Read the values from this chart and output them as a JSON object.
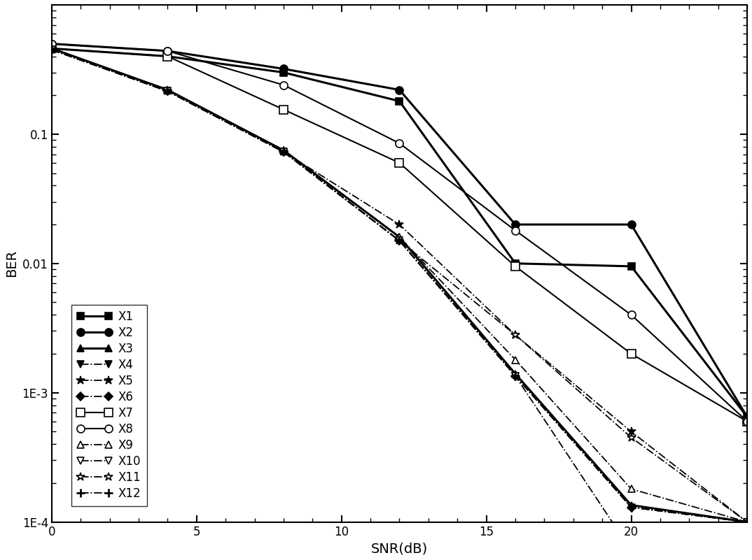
{
  "title": "",
  "xlabel": "SNR(dB)",
  "ylabel": "BER",
  "xlim": [
    0,
    24
  ],
  "ylim": [
    0.0001,
    1.0
  ],
  "xticks": [
    0,
    5,
    10,
    15,
    20
  ],
  "series": [
    {
      "label": "X1",
      "x": [
        0,
        4,
        8,
        12,
        16,
        20,
        24
      ],
      "y": [
        0.46,
        0.4,
        0.3,
        0.18,
        0.01,
        0.0095,
        0.00065
      ],
      "color": "black",
      "linestyle": "-",
      "linewidth": 2.2,
      "marker": "s",
      "markersize": 7,
      "markerfacecolor": "black",
      "markeredgecolor": "black"
    },
    {
      "label": "X2",
      "x": [
        0,
        4,
        8,
        12,
        16,
        20,
        24
      ],
      "y": [
        0.5,
        0.44,
        0.32,
        0.22,
        0.02,
        0.02,
        0.00065
      ],
      "color": "black",
      "linestyle": "-",
      "linewidth": 2.2,
      "marker": "o",
      "markersize": 8,
      "markerfacecolor": "black",
      "markeredgecolor": "black"
    },
    {
      "label": "X3",
      "x": [
        0,
        4,
        8,
        12,
        16,
        20,
        24
      ],
      "y": [
        0.46,
        0.22,
        0.075,
        0.016,
        0.0014,
        0.000135,
        0.0001
      ],
      "color": "black",
      "linestyle": "-",
      "linewidth": 2.2,
      "marker": "^",
      "markersize": 7,
      "markerfacecolor": "black",
      "markeredgecolor": "black"
    },
    {
      "label": "X4",
      "x": [
        0,
        4,
        8,
        12,
        16,
        20,
        24
      ],
      "y": [
        0.45,
        0.215,
        0.073,
        0.015,
        0.00135,
        0.00013,
        0.0001
      ],
      "color": "black",
      "linestyle": "-.",
      "linewidth": 1.3,
      "marker": "v",
      "markersize": 7,
      "markerfacecolor": "black",
      "markeredgecolor": "black"
    },
    {
      "label": "X5",
      "x": [
        0,
        4,
        8,
        12,
        16,
        20,
        24
      ],
      "y": [
        0.45,
        0.215,
        0.073,
        0.02,
        0.0028,
        0.0005,
        0.0001
      ],
      "color": "black",
      "linestyle": "-.",
      "linewidth": 1.3,
      "marker": "*",
      "markersize": 9,
      "markerfacecolor": "black",
      "markeredgecolor": "black"
    },
    {
      "label": "X6",
      "x": [
        0,
        4,
        8,
        12,
        16,
        20,
        24
      ],
      "y": [
        0.45,
        0.215,
        0.073,
        0.015,
        0.00135,
        0.00013,
        0.0001
      ],
      "color": "black",
      "linestyle": "-.",
      "linewidth": 1.3,
      "marker": "D",
      "markersize": 6,
      "markerfacecolor": "black",
      "markeredgecolor": "black"
    },
    {
      "label": "X7",
      "x": [
        0,
        4,
        8,
        12,
        16,
        20,
        24
      ],
      "y": [
        0.46,
        0.4,
        0.155,
        0.06,
        0.0095,
        0.002,
        0.0006
      ],
      "color": "black",
      "linestyle": "-",
      "linewidth": 1.5,
      "marker": "s",
      "markersize": 8,
      "markerfacecolor": "white",
      "markeredgecolor": "black"
    },
    {
      "label": "X8",
      "x": [
        0,
        4,
        8,
        12,
        16,
        20,
        24
      ],
      "y": [
        0.5,
        0.44,
        0.24,
        0.085,
        0.018,
        0.004,
        0.0006
      ],
      "color": "black",
      "linestyle": "-",
      "linewidth": 1.5,
      "marker": "o",
      "markersize": 8,
      "markerfacecolor": "white",
      "markeredgecolor": "black"
    },
    {
      "label": "X9",
      "x": [
        0,
        4,
        8,
        12,
        16,
        20,
        24
      ],
      "y": [
        0.46,
        0.22,
        0.075,
        0.016,
        0.0018,
        0.00018,
        0.0001
      ],
      "color": "black",
      "linestyle": "-.",
      "linewidth": 1.3,
      "marker": "^",
      "markersize": 7,
      "markerfacecolor": "white",
      "markeredgecolor": "black"
    },
    {
      "label": "X10",
      "x": [
        0,
        4,
        8,
        12,
        16,
        20,
        24
      ],
      "y": [
        0.45,
        0.215,
        0.073,
        0.015,
        0.00135,
        6e-05,
        0.0001
      ],
      "color": "black",
      "linestyle": "-.",
      "linewidth": 1.3,
      "marker": "v",
      "markersize": 7,
      "markerfacecolor": "white",
      "markeredgecolor": "black"
    },
    {
      "label": "X11",
      "x": [
        0,
        4,
        8,
        12,
        16,
        20,
        24
      ],
      "y": [
        0.45,
        0.215,
        0.073,
        0.015,
        0.0028,
        0.00045,
        0.0001
      ],
      "color": "black",
      "linestyle": "-.",
      "linewidth": 1.3,
      "marker": "*",
      "markersize": 9,
      "markerfacecolor": "white",
      "markeredgecolor": "black"
    },
    {
      "label": "X12",
      "x": [
        0,
        4,
        8,
        12,
        16,
        20,
        24
      ],
      "y": [
        0.45,
        0.215,
        0.073,
        0.015,
        0.00135,
        0.00013,
        0.0001
      ],
      "color": "black",
      "linestyle": "-.",
      "linewidth": 1.3,
      "marker": "+",
      "markersize": 9,
      "markerfacecolor": "black",
      "markeredgecolor": "black",
      "markeredgewidth": 2.0
    }
  ],
  "legend_fontsize": 12,
  "axis_fontsize": 14,
  "tick_fontsize": 12,
  "background_color": "white",
  "major_yticks": [
    0.0001,
    0.001,
    0.01,
    0.1
  ],
  "major_ytick_labels": [
    "1E-4",
    "1E-3",
    "0.01",
    "0.1"
  ]
}
